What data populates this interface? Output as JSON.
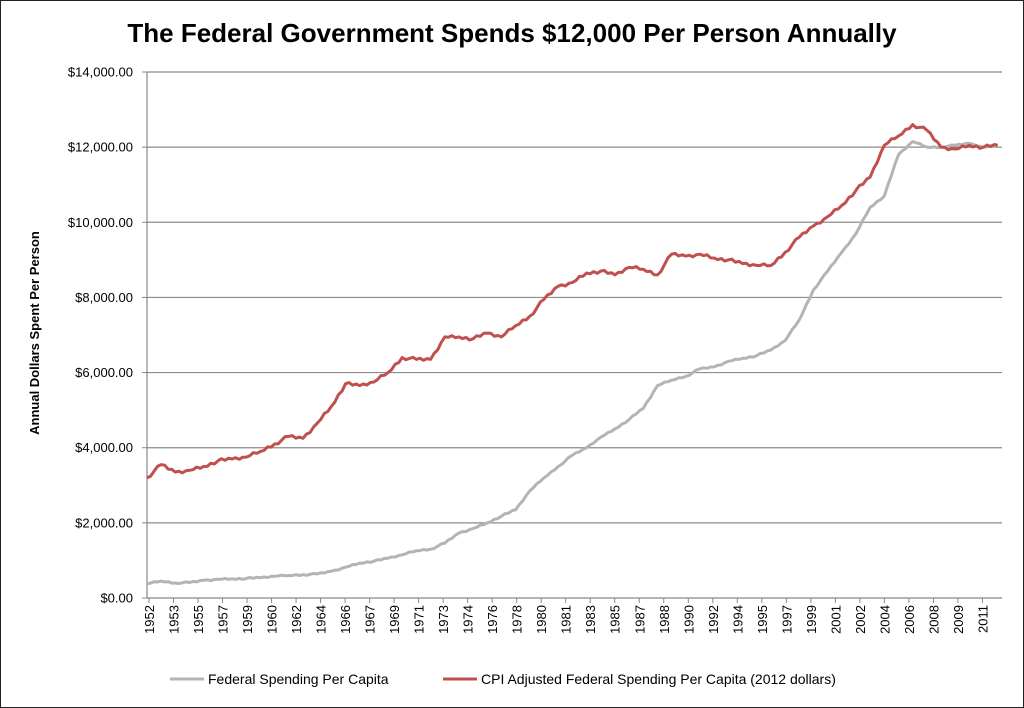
{
  "chart_data": {
    "type": "line",
    "title": "The Federal Government Spends $12,000 Per Person Annually",
    "ylabel": "Annual Dollars Spent Per Person",
    "xlabel": "",
    "ylim": [
      0,
      14000
    ],
    "yticks": [
      "$0.00",
      "$2,000.00",
      "$4,000.00",
      "$6,000.00",
      "$8,000.00",
      "$10,000.00",
      "$12,000.00",
      "$14,000.00"
    ],
    "ytick_values": [
      0,
      2000,
      4000,
      6000,
      8000,
      10000,
      12000,
      14000
    ],
    "xlim": [
      1952,
      2012.3
    ],
    "xticks": [
      "1952",
      "1953",
      "1955",
      "1957",
      "1959",
      "1960",
      "1962",
      "1964",
      "1966",
      "1967",
      "1969",
      "1971",
      "1973",
      "1974",
      "1976",
      "1978",
      "1980",
      "1981",
      "1983",
      "1985",
      "1987",
      "1988",
      "1990",
      "1992",
      "1994",
      "1995",
      "1997",
      "1999",
      "2001",
      "2002",
      "2004",
      "2006",
      "2008",
      "2009",
      "2011"
    ],
    "grid": "horizontal",
    "legend_position": "bottom",
    "series": [
      {
        "name": "Federal Spending Per Capita",
        "color": "#b4b4b4",
        "x": [
          1952,
          1953,
          1954,
          1955,
          1956,
          1957,
          1958,
          1959,
          1960,
          1961,
          1962,
          1963,
          1964,
          1965,
          1966,
          1967,
          1968,
          1969,
          1970,
          1971,
          1972,
          1973,
          1974,
          1975,
          1976,
          1977,
          1978,
          1979,
          1980,
          1981,
          1982,
          1983,
          1984,
          1985,
          1986,
          1987,
          1988,
          1989,
          1990,
          1991,
          1992,
          1993,
          1994,
          1995,
          1996,
          1997,
          1998,
          1999,
          2000,
          2001,
          2002,
          2003,
          2004,
          2005,
          2006,
          2007,
          2008,
          2009,
          2010,
          2011,
          2012
        ],
        "values": [
          380,
          450,
          400,
          410,
          470,
          500,
          510,
          520,
          540,
          580,
          600,
          620,
          640,
          710,
          820,
          930,
          980,
          1060,
          1150,
          1260,
          1300,
          1460,
          1730,
          1850,
          2000,
          2180,
          2350,
          2850,
          3200,
          3500,
          3800,
          4000,
          4280,
          4500,
          4750,
          5050,
          5650,
          5800,
          5900,
          6100,
          6150,
          6300,
          6380,
          6450,
          6600,
          6850,
          7400,
          8200,
          8700,
          9200,
          9700,
          10400,
          10700,
          11800,
          12150,
          12000,
          12000,
          12050,
          12100,
          12000,
          12050
        ]
      },
      {
        "name": "CPI Adjusted Federal Spending Per Capita (2012 dollars)",
        "color": "#c0504d",
        "x": [
          1952,
          1953,
          1954,
          1955,
          1956,
          1957,
          1958,
          1959,
          1960,
          1961,
          1962,
          1963,
          1964,
          1965,
          1966,
          1967,
          1968,
          1969,
          1970,
          1971,
          1972,
          1973,
          1974,
          1975,
          1976,
          1977,
          1978,
          1979,
          1980,
          1981,
          1982,
          1983,
          1984,
          1985,
          1986,
          1987,
          1988,
          1989,
          1990,
          1991,
          1992,
          1993,
          1994,
          1995,
          1996,
          1997,
          1998,
          1999,
          2000,
          2001,
          2002,
          2003,
          2004,
          2005,
          2006,
          2007,
          2008,
          2009,
          2010,
          2011,
          2012
        ],
        "values": [
          3200,
          3550,
          3350,
          3400,
          3500,
          3650,
          3700,
          3750,
          3900,
          4100,
          4300,
          4250,
          4650,
          5100,
          5700,
          5650,
          5750,
          6000,
          6400,
          6350,
          6350,
          6950,
          6950,
          6900,
          7050,
          6950,
          7250,
          7500,
          7950,
          8300,
          8400,
          8650,
          8700,
          8600,
          8800,
          8750,
          8600,
          9150,
          9100,
          9150,
          9050,
          9000,
          8900,
          8850,
          8850,
          9200,
          9600,
          9900,
          10150,
          10450,
          10850,
          11200,
          12050,
          12300,
          12600,
          12450,
          12000,
          11950,
          12050,
          12000,
          12050
        ]
      }
    ]
  }
}
